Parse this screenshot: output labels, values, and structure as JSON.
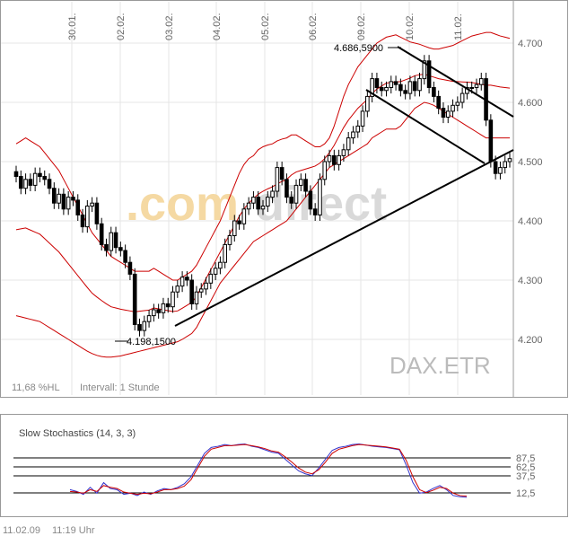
{
  "colors": {
    "frame": "#999999",
    "grid": "#e6e6e6",
    "candle": "#000000",
    "bollinger": "#cc0000",
    "trendline": "#000000",
    "stoch_k": "#3333cc",
    "stoch_d": "#cc0000",
    "label": "#666666",
    "watermark_orange": "#f5d9a3",
    "watermark_gray": "#d9d9d9"
  },
  "price_chart": {
    "watermark_left": ".com",
    "watermark_right": "direct",
    "symbol_label": "DAX.ETR",
    "volatility_label": "11,68 %HL",
    "interval_label": "Intervall: 1 Stunde",
    "annotations": [
      {
        "text": "4.686,5900",
        "anchor": "high"
      },
      {
        "text": "4.198,1500",
        "anchor": "low"
      }
    ]
  },
  "chart_data": [
    {
      "type": "candlestick",
      "x_tick_labels": [
        "30.01.",
        "02.02.",
        "03.02.",
        "04.02.",
        "05.02.",
        "06.02.",
        "09.02.",
        "10.02.",
        "11.02."
      ],
      "y_ticks": [
        4200,
        4300,
        4400,
        4500,
        4600,
        4700
      ],
      "y_tick_labels": [
        "4.200",
        "4.300",
        "4.400",
        "4.500",
        "4.600",
        "4.700"
      ],
      "ylim": [
        4170,
        4720
      ],
      "grid": true,
      "candles_hourly_close": [
        4475,
        4455,
        4470,
        4460,
        4480,
        4475,
        4470,
        4455,
        4430,
        4445,
        4420,
        4440,
        4435,
        4410,
        4390,
        4425,
        4430,
        4395,
        4360,
        4350,
        4380,
        4355,
        4350,
        4330,
        4310,
        4225,
        4215,
        4230,
        4240,
        4250,
        4245,
        4260,
        4255,
        4280,
        4290,
        4305,
        4300,
        4260,
        4280,
        4285,
        4295,
        4310,
        4320,
        4330,
        4360,
        4375,
        4400,
        4395,
        4420,
        4430,
        4440,
        4420,
        4425,
        4440,
        4450,
        4490,
        4470,
        4440,
        4430,
        4460,
        4470,
        4450,
        4420,
        4410,
        4470,
        4500,
        4510,
        4495,
        4510,
        4520,
        4540,
        4550,
        4560,
        4585,
        4610,
        4640,
        4625,
        4620,
        4625,
        4635,
        4630,
        4620,
        4615,
        4635,
        4620,
        4640,
        4670,
        4625,
        4610,
        4590,
        4575,
        4585,
        4595,
        4600,
        4615,
        4625,
        4625,
        4630,
        4640,
        4570,
        4500,
        4480,
        4490,
        4500,
        4505
      ],
      "bollinger_upper": [
        4530,
        4535,
        4540,
        4535,
        4530,
        4525,
        4515,
        4505,
        4495,
        4485,
        4470,
        4455,
        4440,
        4425,
        4410,
        4395,
        4380,
        4370,
        4360,
        4350,
        4340,
        4335,
        4330,
        4325,
        4320,
        4315,
        4315,
        4315,
        4315,
        4320,
        4315,
        4310,
        4305,
        4300,
        4300,
        4305,
        4310,
        4315,
        4325,
        4340,
        4355,
        4370,
        4385,
        4400,
        4420,
        4440,
        4460,
        4480,
        4495,
        4505,
        4510,
        4520,
        4525,
        4528,
        4530,
        4535,
        4538,
        4540,
        4545,
        4545,
        4540,
        4535,
        4530,
        4525,
        4525,
        4530,
        4540,
        4560,
        4585,
        4610,
        4630,
        4645,
        4660,
        4670,
        4680,
        4690,
        4700,
        4705,
        4710,
        4712,
        4714,
        4710,
        4706,
        4702,
        4700,
        4698,
        4695,
        4692,
        4690,
        4690,
        4692,
        4694,
        4696,
        4700,
        4704,
        4708,
        4712,
        4714,
        4716,
        4718,
        4718,
        4715,
        4712,
        4710,
        4708
      ],
      "bollinger_lower": [
        4240,
        4238,
        4236,
        4234,
        4232,
        4230,
        4225,
        4220,
        4215,
        4210,
        4205,
        4200,
        4195,
        4190,
        4185,
        4180,
        4176,
        4173,
        4171,
        4170,
        4170,
        4171,
        4172,
        4174,
        4176,
        4178,
        4180,
        4182,
        4184,
        4186,
        4188,
        4190,
        4192,
        4194,
        4196,
        4200,
        4205,
        4210,
        4220,
        4235,
        4250,
        4265,
        4280,
        4295,
        4305,
        4315,
        4325,
        4335,
        4345,
        4355,
        4365,
        4370,
        4375,
        4380,
        4385,
        4390,
        4395,
        4400,
        4410,
        4420,
        4430,
        4440,
        4450,
        4460,
        4470,
        4480,
        4490,
        4495,
        4500,
        4505,
        4510,
        4515,
        4520,
        4525,
        4530,
        4540,
        4545,
        4550,
        4555,
        4555,
        4555,
        4560,
        4570,
        4580,
        4590,
        4595,
        4600,
        4598,
        4595,
        4590,
        4585,
        4580,
        4575,
        4570,
        4565,
        4560,
        4555,
        4550,
        4545,
        4540,
        4540,
        4540,
        4540,
        4540,
        4540
      ],
      "annotations": [
        "4.686,5900",
        "4.198,1500"
      ]
    },
    {
      "type": "line",
      "title": "Slow Stochastics (14, 3, 3)",
      "y_ticks": [
        12.5,
        37.5,
        62.5,
        87.5
      ],
      "y_tick_labels": [
        "12,5",
        "37,5",
        "62,5",
        "87,5"
      ],
      "ylim": [
        0,
        100
      ],
      "series": [
        {
          "values": [
            18,
            15,
            10,
            22,
            12,
            30,
            20,
            18,
            10,
            12,
            8,
            14,
            10,
            16,
            20,
            18,
            22,
            28,
            40,
            60,
            80,
            90,
            92,
            95,
            93,
            95,
            96,
            92,
            90,
            86,
            82,
            80,
            70,
            60,
            50,
            45,
            42,
            55,
            70,
            85,
            90,
            92,
            95,
            96,
            94,
            92,
            91,
            90,
            88,
            86,
            60,
            30,
            12,
            14,
            20,
            25,
            18,
            8,
            6,
            5
          ]
        },
        {
          "values": [
            15,
            14,
            12,
            18,
            15,
            25,
            22,
            20,
            14,
            12,
            10,
            12,
            11,
            14,
            18,
            18,
            20,
            24,
            35,
            55,
            75,
            87,
            90,
            93,
            93,
            94,
            95,
            93,
            91,
            88,
            84,
            82,
            74,
            65,
            55,
            48,
            45,
            52,
            65,
            80,
            87,
            90,
            93,
            95,
            94,
            93,
            92,
            91,
            89,
            87,
            68,
            40,
            18,
            13,
            17,
            22,
            20,
            12,
            8,
            7
          ]
        }
      ]
    }
  ],
  "footer": {
    "date": "11.02.09",
    "time": "11:19 Uhr"
  }
}
